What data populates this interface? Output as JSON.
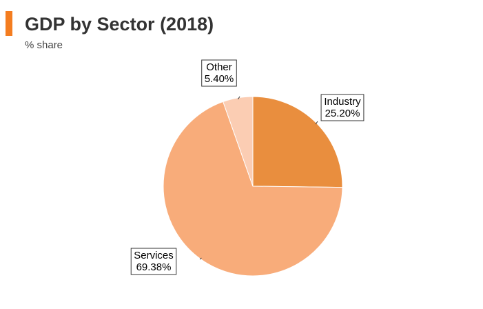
{
  "header": {
    "title": "GDP by Sector (2018)",
    "subtitle": "% share",
    "accent_color": "#f47d20"
  },
  "chart_data": {
    "type": "pie",
    "title": "GDP by Sector (2018)",
    "subtitle": "% share",
    "unit": "%",
    "start_angle": "12 o'clock",
    "direction": "clockwise",
    "slices": [
      {
        "name": "Industry",
        "value": 25.2,
        "label": "25.20%",
        "color": "#e98e3e"
      },
      {
        "name": "Services",
        "value": 69.38,
        "label": "69.38%",
        "color": "#f8ac7a"
      },
      {
        "name": "Other",
        "value": 5.4,
        "label": "5.40%",
        "color": "#fbcdb3"
      }
    ]
  }
}
